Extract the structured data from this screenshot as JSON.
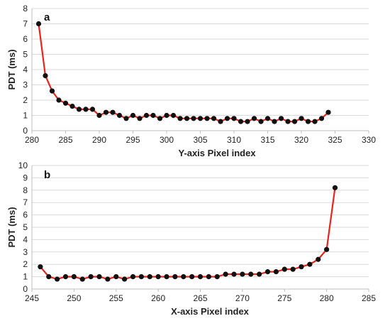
{
  "chart_data": [
    {
      "type": "line",
      "panel_label": "a",
      "xlabel": "Y-axis Pixel index",
      "ylabel": "PDT (ms)",
      "xlim": [
        280,
        330
      ],
      "ylim": [
        0,
        8
      ],
      "xticks": [
        280,
        285,
        290,
        295,
        300,
        305,
        310,
        315,
        320,
        325,
        330
      ],
      "yticks": [
        0,
        1,
        2,
        3,
        4,
        5,
        6,
        7,
        8
      ],
      "grid": "horizontal",
      "line_color": "#e8241c",
      "marker_color": "#111111",
      "x": [
        281,
        282,
        283,
        284,
        285,
        286,
        287,
        288,
        289,
        290,
        291,
        292,
        293,
        294,
        295,
        296,
        297,
        298,
        299,
        300,
        301,
        302,
        303,
        304,
        305,
        306,
        307,
        308,
        309,
        310,
        311,
        312,
        313,
        314,
        315,
        316,
        317,
        318,
        319,
        320,
        321,
        322,
        323,
        324
      ],
      "y": [
        7.0,
        3.6,
        2.6,
        2.0,
        1.8,
        1.6,
        1.4,
        1.4,
        1.4,
        1.0,
        1.2,
        1.2,
        1.0,
        0.8,
        1.0,
        0.8,
        1.0,
        1.0,
        0.8,
        1.0,
        1.0,
        0.8,
        0.8,
        0.8,
        0.8,
        0.8,
        0.8,
        0.6,
        0.8,
        0.8,
        0.6,
        0.6,
        0.8,
        0.6,
        0.8,
        0.6,
        0.8,
        0.6,
        0.6,
        0.8,
        0.6,
        0.6,
        0.8,
        1.2
      ]
    },
    {
      "type": "line",
      "panel_label": "b",
      "xlabel": "X-axis Pixel index",
      "ylabel": "PDT (ms)",
      "xlim": [
        245,
        285
      ],
      "ylim": [
        0,
        10
      ],
      "xticks": [
        245,
        250,
        255,
        260,
        265,
        270,
        275,
        280,
        285
      ],
      "yticks": [
        0,
        1,
        2,
        3,
        4,
        5,
        6,
        7,
        8,
        9,
        10
      ],
      "grid": "horizontal",
      "line_color": "#e8241c",
      "marker_color": "#111111",
      "x": [
        246,
        247,
        248,
        249,
        250,
        251,
        252,
        253,
        254,
        255,
        256,
        257,
        258,
        259,
        260,
        261,
        262,
        263,
        264,
        265,
        266,
        267,
        268,
        269,
        270,
        271,
        272,
        273,
        274,
        275,
        276,
        277,
        278,
        279,
        280,
        281
      ],
      "y": [
        1.8,
        1.0,
        0.8,
        1.0,
        1.0,
        0.8,
        1.0,
        1.0,
        0.8,
        1.0,
        0.8,
        1.0,
        1.0,
        1.0,
        1.0,
        1.0,
        1.0,
        1.0,
        1.0,
        1.0,
        1.0,
        1.0,
        1.2,
        1.2,
        1.2,
        1.2,
        1.2,
        1.4,
        1.4,
        1.6,
        1.6,
        1.8,
        2.0,
        2.4,
        3.2,
        8.2
      ]
    }
  ]
}
